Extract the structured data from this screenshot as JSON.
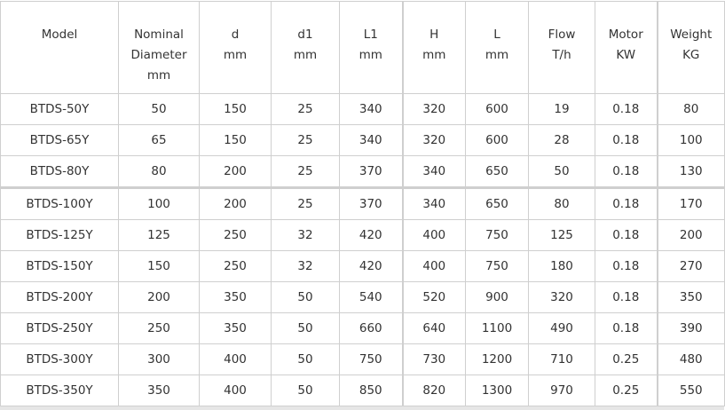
{
  "headers": [
    [
      "Model"
    ],
    [
      "Nominal",
      "Diameter",
      "mm"
    ],
    [
      "d",
      "mm"
    ],
    [
      "d1",
      "mm"
    ],
    [
      "L1",
      "mm"
    ],
    [
      "H",
      "mm"
    ],
    [
      "L",
      "mm"
    ],
    [
      "Flow",
      "T/h"
    ],
    [
      "Motor",
      "KW"
    ],
    [
      "Weight",
      "KG"
    ]
  ],
  "rows": [
    [
      "BTDS-50Y",
      "50",
      "150",
      "25",
      "340",
      "320",
      "600",
      "19",
      "0.18",
      "80"
    ],
    [
      "BTDS-65Y",
      "65",
      "150",
      "25",
      "340",
      "320",
      "600",
      "28",
      "0.18",
      "100"
    ],
    [
      "BTDS-80Y",
      "80",
      "200",
      "25",
      "370",
      "340",
      "650",
      "50",
      "0.18",
      "130"
    ],
    [
      "BTDS-100Y",
      "100",
      "200",
      "25",
      "370",
      "340",
      "650",
      "80",
      "0.18",
      "170"
    ],
    [
      "BTDS-125Y",
      "125",
      "250",
      "32",
      "420",
      "400",
      "750",
      "125",
      "0.18",
      "200"
    ],
    [
      "BTDS-150Y",
      "150",
      "250",
      "32",
      "420",
      "400",
      "750",
      "180",
      "0.18",
      "270"
    ],
    [
      "BTDS-200Y",
      "200",
      "350",
      "50",
      "540",
      "520",
      "900",
      "320",
      "0.18",
      "350"
    ],
    [
      "BTDS-250Y",
      "250",
      "350",
      "50",
      "660",
      "640",
      "1100",
      "490",
      "0.18",
      "390"
    ],
    [
      "BTDS-300Y",
      "300",
      "400",
      "50",
      "750",
      "730",
      "1200",
      "710",
      "0.25",
      "480"
    ],
    [
      "BTDS-350Y",
      "350",
      "400",
      "50",
      "850",
      "820",
      "1300",
      "970",
      "0.25",
      "550"
    ]
  ]
}
